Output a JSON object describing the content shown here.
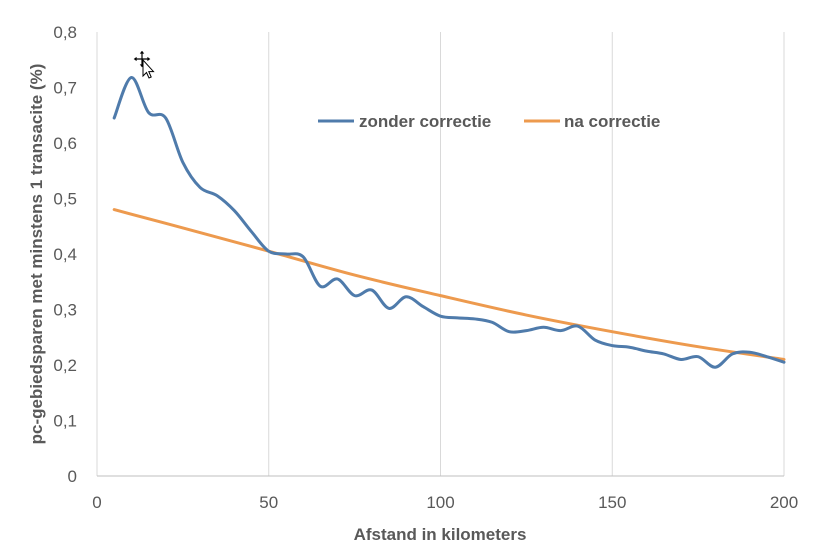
{
  "chart_data": {
    "type": "line",
    "title": "",
    "xlabel": "Afstand in kilometers",
    "ylabel": "pc-gebiedsparen met minstens 1 transacite (%)",
    "xlim": [
      0,
      200
    ],
    "ylim": [
      0,
      0.8
    ],
    "x_ticks": [
      0,
      50,
      100,
      150,
      200
    ],
    "y_ticks": [
      0,
      0.1,
      0.2,
      0.3,
      0.4,
      0.5,
      0.6,
      0.7,
      0.8
    ],
    "x_tick_labels": [
      "0",
      "50",
      "100",
      "150",
      "200"
    ],
    "y_tick_labels": [
      "0",
      "0,1",
      "0,2",
      "0,3",
      "0,4",
      "0,5",
      "0,6",
      "0,7",
      "0,8"
    ],
    "grid": "vertical",
    "legend_position": "top-right",
    "series": [
      {
        "name": "zonder correctie",
        "color": "#4f7bab",
        "x": [
          5,
          10,
          15,
          20,
          25,
          30,
          35,
          40,
          45,
          50,
          55,
          60,
          65,
          70,
          75,
          80,
          85,
          90,
          95,
          100,
          105,
          110,
          115,
          120,
          125,
          130,
          135,
          140,
          145,
          150,
          155,
          160,
          165,
          170,
          175,
          180,
          185,
          190,
          195,
          200
        ],
        "y": [
          0.645,
          0.718,
          0.655,
          0.645,
          0.565,
          0.52,
          0.505,
          0.478,
          0.44,
          0.405,
          0.4,
          0.395,
          0.342,
          0.355,
          0.325,
          0.335,
          0.302,
          0.323,
          0.305,
          0.288,
          0.285,
          0.283,
          0.277,
          0.26,
          0.262,
          0.268,
          0.262,
          0.27,
          0.245,
          0.235,
          0.232,
          0.225,
          0.22,
          0.21,
          0.215,
          0.196,
          0.22,
          0.223,
          0.215,
          0.205
        ]
      },
      {
        "name": "na correctie",
        "color": "#ed9a4e",
        "x": [
          5,
          25,
          50,
          75,
          100,
          125,
          150,
          175,
          200
        ],
        "y": [
          0.48,
          0.447,
          0.405,
          0.362,
          0.325,
          0.29,
          0.26,
          0.233,
          0.21
        ]
      }
    ]
  },
  "cursor": {
    "icon": "move-cursor-icon"
  }
}
